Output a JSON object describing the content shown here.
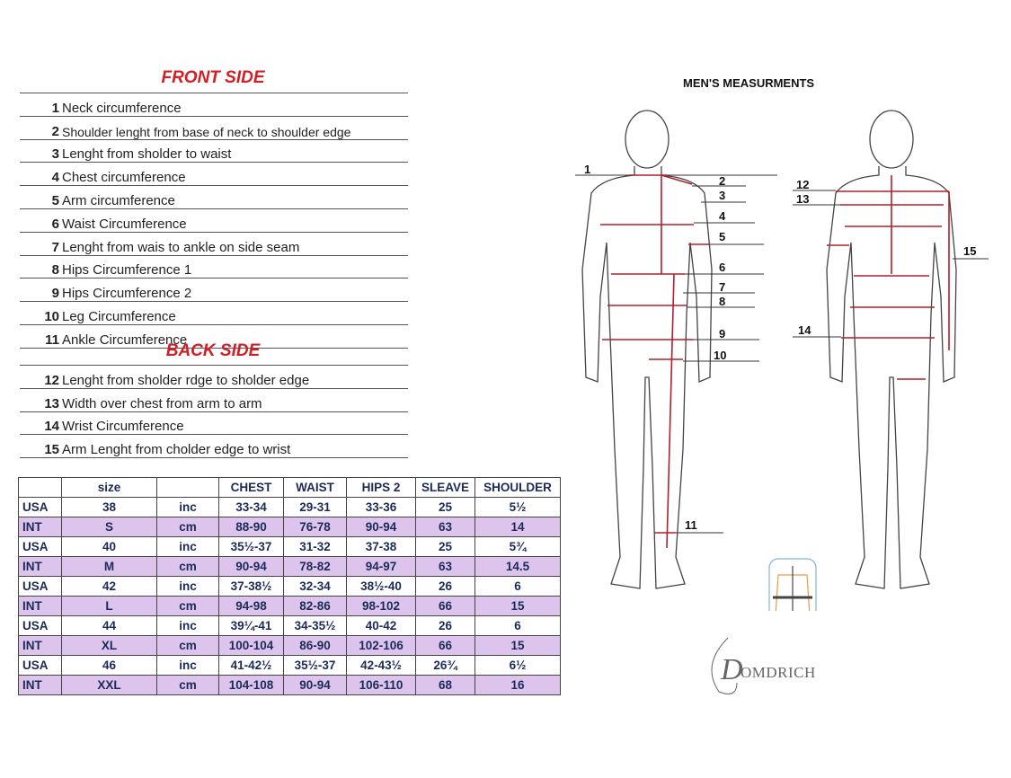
{
  "front_title": "FRONT SIDE",
  "back_title": "BACK SIDE",
  "front_items": [
    {
      "num": "1",
      "label": "Neck circumference"
    },
    {
      "num": "2",
      "label": "Shoulder lenght from base of neck to shoulder edge"
    },
    {
      "num": "3",
      "label": "Lenght from sholder to waist"
    },
    {
      "num": "4",
      "label": "Chest  circumference"
    },
    {
      "num": "5",
      "label": "Arm circumference"
    },
    {
      "num": "6",
      "label": "Waist Circumference"
    },
    {
      "num": "7",
      "label": "Lenght from wais to ankle on side seam"
    },
    {
      "num": "8",
      "label": "Hips Circumference 1"
    },
    {
      "num": "9",
      "label": "Hips Circumference 2"
    },
    {
      "num": "10",
      "label": "Leg Circumference"
    },
    {
      "num": "11",
      "label": "Ankle Circumference"
    }
  ],
  "back_items": [
    {
      "num": "12",
      "label": "Lenght from sholder rdge to sholder edge"
    },
    {
      "num": "13",
      "label": "Width over chest from arm to arm"
    },
    {
      "num": "14",
      "label": "Wrist Circumference"
    },
    {
      "num": "15",
      "label": "Arm Lenght from cholder edge to wrist"
    }
  ],
  "size_table": {
    "headers": [
      "",
      "size",
      "",
      "CHEST",
      "WAIST",
      "HIPS 2",
      "SLEAVE",
      "SHOULDER"
    ],
    "rows": [
      [
        "USA",
        "38",
        "inc",
        "33-34",
        "29-31",
        "33-36",
        "25",
        "5½"
      ],
      [
        "INT",
        "S",
        "cm",
        "88-90",
        "76-78",
        "90-94",
        "63",
        "14"
      ],
      [
        "USA",
        "40",
        "inc",
        "35½-37",
        "31-32",
        "37-38",
        "25",
        "5¾"
      ],
      [
        "INT",
        "M",
        "cm",
        "90-94",
        "78-82",
        "94-97",
        "63",
        "14.5"
      ],
      [
        "USA",
        "42",
        "inc",
        "37-38½",
        "32-34",
        "38½-40",
        "26",
        "6"
      ],
      [
        "INT",
        "L",
        "cm",
        "94-98",
        "82-86",
        "98-102",
        "66",
        "15"
      ],
      [
        "USA",
        "44",
        "inc",
        "39¼-41",
        "34-35½",
        "40-42",
        "26",
        "6"
      ],
      [
        "INT",
        "XL",
        "cm",
        "100-104",
        "86-90",
        "102-106",
        "66",
        "15"
      ],
      [
        "USA",
        "46",
        "inc",
        "41-42½",
        "35½-37",
        "42-43½",
        "26¾",
        "6½"
      ],
      [
        "INT",
        "XXL",
        "cm",
        "104-108",
        "90-94",
        "106-110",
        "68",
        "16"
      ]
    ]
  },
  "figure_title": "MEN'S MEASURMENTS",
  "figure_labels": {
    "l1": "1",
    "l2": "2",
    "l3": "3",
    "l4": "4",
    "l5": "5",
    "l6": "6",
    "l7": "7",
    "l8": "8",
    "l9": "9",
    "l10": "10",
    "l11": "11",
    "l12": "12",
    "l13": "13",
    "l14": "14",
    "l15": "15"
  },
  "logo_text": "DOMDRICH",
  "colors": {
    "title_red": "#d21f26",
    "measure_red": "#b0202a",
    "int_row": "#dcc4ec"
  }
}
